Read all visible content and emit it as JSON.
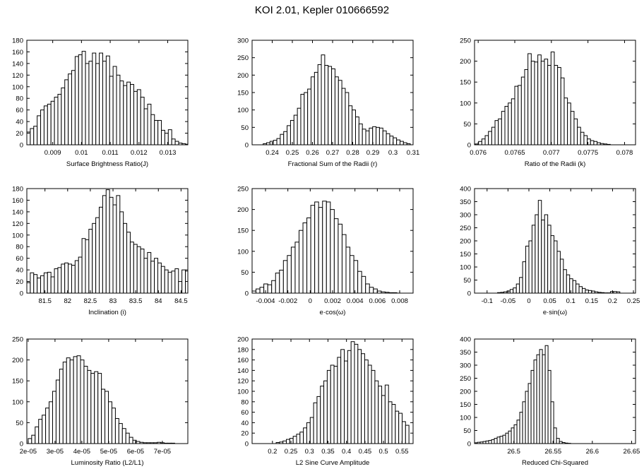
{
  "figure": {
    "title": "KOI 2.01, Kepler 010666592"
  },
  "chart_data": [
    {
      "type": "bar",
      "xlabel": "Surface Brightness Ratio(J)",
      "xlim": [
        0.0081,
        0.0137
      ],
      "ylim": [
        0,
        180
      ],
      "xticks": [
        0.009,
        0.01,
        0.011,
        0.012,
        0.013
      ],
      "xtick_labels": [
        "0.009",
        "0.01",
        "0.011",
        "0.012",
        "0.013"
      ],
      "yticks": [
        0,
        20,
        40,
        60,
        80,
        100,
        120,
        140,
        160,
        180
      ],
      "ytick_labels": [
        "0",
        "20",
        "40",
        "60",
        "80",
        "100",
        "120",
        "140",
        "160",
        "180"
      ],
      "bin_start": 0.0081,
      "bin_width": 0.00012,
      "values": [
        22,
        28,
        32,
        50,
        60,
        67,
        70,
        75,
        82,
        87,
        98,
        112,
        122,
        128,
        152,
        155,
        161,
        140,
        144,
        158,
        140,
        158,
        144,
        153,
        118,
        135,
        120,
        110,
        102,
        108,
        104,
        92,
        95,
        82,
        62,
        70,
        52,
        42,
        42,
        25,
        20,
        26,
        10,
        6,
        3,
        2,
        1
      ]
    },
    {
      "type": "bar",
      "xlabel": "Fractional Sum of the Radii (r)",
      "xlim": [
        0.23,
        0.31
      ],
      "ylim": [
        0,
        300
      ],
      "xticks": [
        0.24,
        0.25,
        0.26,
        0.27,
        0.28,
        0.29,
        0.3,
        0.31
      ],
      "xtick_labels": [
        "0.24",
        "0.25",
        "0.26",
        "0.27",
        "0.28",
        "0.29",
        "0.3",
        "0.31"
      ],
      "yticks": [
        0,
        50,
        100,
        150,
        200,
        250,
        300
      ],
      "ytick_labels": [
        "0",
        "50",
        "100",
        "150",
        "200",
        "250",
        "300"
      ],
      "bin_start": 0.2355,
      "bin_width": 0.0017,
      "values": [
        3,
        6,
        10,
        13,
        18,
        30,
        38,
        55,
        70,
        85,
        105,
        145,
        150,
        160,
        195,
        208,
        230,
        258,
        228,
        225,
        218,
        195,
        185,
        162,
        150,
        112,
        100,
        80,
        60,
        45,
        40,
        48,
        52,
        50,
        48,
        40,
        32,
        25,
        20,
        14,
        10,
        6,
        3
      ]
    },
    {
      "type": "bar",
      "xlabel": "Ratio of the Radii (k)",
      "xlim": [
        0.07595,
        0.07815
      ],
      "ylim": [
        0,
        250
      ],
      "xticks": [
        0.076,
        0.0765,
        0.077,
        0.0775,
        0.078
      ],
      "xtick_labels": [
        "0.076",
        "0.0765",
        "0.077",
        "0.0775",
        "0.078"
      ],
      "yticks": [
        0,
        50,
        100,
        150,
        200,
        250
      ],
      "ytick_labels": [
        "0",
        "50",
        "100",
        "150",
        "200",
        "250"
      ],
      "bin_start": 0.07596,
      "bin_width": 4.5e-05,
      "values": [
        2,
        8,
        14,
        22,
        32,
        42,
        58,
        62,
        80,
        92,
        100,
        110,
        140,
        142,
        162,
        180,
        218,
        200,
        198,
        215,
        200,
        205,
        190,
        222,
        190,
        185,
        160,
        112,
        100,
        80,
        62,
        42,
        30,
        22,
        14,
        10,
        8,
        5,
        3,
        2,
        1
      ]
    },
    {
      "type": "bar",
      "xlabel": "Inclination (i)",
      "xlim": [
        81.1,
        84.65
      ],
      "ylim": [
        0,
        180
      ],
      "xticks": [
        81.5,
        82,
        82.5,
        83,
        83.5,
        84,
        84.5
      ],
      "xtick_labels": [
        "81.5",
        "82",
        "82.5",
        "83",
        "83.5",
        "84",
        "84.5"
      ],
      "yticks": [
        0,
        20,
        40,
        60,
        80,
        100,
        120,
        140,
        160,
        180
      ],
      "ytick_labels": [
        "0",
        "20",
        "40",
        "60",
        "80",
        "100",
        "120",
        "140",
        "160",
        "180"
      ],
      "bin_start": 81.1,
      "bin_width": 0.076,
      "values": [
        18,
        35,
        32,
        26,
        30,
        35,
        36,
        28,
        42,
        44,
        50,
        52,
        50,
        48,
        56,
        62,
        94,
        92,
        110,
        120,
        130,
        148,
        168,
        178,
        165,
        152,
        168,
        140,
        120,
        105,
        88,
        84,
        80,
        76,
        60,
        70,
        55,
        60,
        52,
        46,
        40,
        36,
        38,
        42,
        20,
        40,
        38
      ]
    },
    {
      "type": "bar",
      "xlabel": "e·cos(ω)",
      "xlim": [
        -0.0052,
        0.0092
      ],
      "ylim": [
        0,
        250
      ],
      "xticks": [
        -0.004,
        -0.002,
        0,
        0.002,
        0.004,
        0.006,
        0.008
      ],
      "xtick_labels": [
        "-0.004",
        "-0.002",
        "0",
        "0.002",
        "0.004",
        "0.006",
        "0.008"
      ],
      "yticks": [
        0,
        50,
        100,
        150,
        200,
        250
      ],
      "ytick_labels": [
        "0",
        "50",
        "100",
        "150",
        "200",
        "250"
      ],
      "bin_start": -0.0052,
      "bin_width": 0.00035,
      "values": [
        5,
        10,
        14,
        22,
        20,
        30,
        48,
        55,
        78,
        90,
        110,
        122,
        150,
        168,
        180,
        210,
        218,
        205,
        220,
        218,
        200,
        178,
        165,
        140,
        110,
        90,
        78,
        52,
        40,
        22,
        14,
        10,
        5,
        3,
        2,
        1,
        1
      ]
    },
    {
      "type": "bar",
      "xlabel": "e·sin(ω)",
      "xlim": [
        -0.13,
        0.255
      ],
      "ylim": [
        0,
        400
      ],
      "xticks": [
        -0.1,
        -0.05,
        0,
        0.05,
        0.1,
        0.15,
        0.2,
        0.25
      ],
      "xtick_labels": [
        "-0.1",
        "-0.05",
        "0",
        "0.05",
        "0.1",
        "0.15",
        "0.2",
        "0.25"
      ],
      "yticks": [
        0,
        50,
        100,
        150,
        200,
        250,
        300,
        350,
        400
      ],
      "ytick_labels": [
        "0",
        "50",
        "100",
        "150",
        "200",
        "250",
        "300",
        "350",
        "400"
      ],
      "bin_start": -0.075,
      "bin_width": 0.0075,
      "values": [
        2,
        3,
        5,
        8,
        14,
        20,
        35,
        60,
        120,
        180,
        200,
        260,
        300,
        355,
        280,
        300,
        260,
        220,
        200,
        160,
        130,
        90,
        70,
        55,
        48,
        35,
        25,
        18,
        12,
        10,
        8,
        5,
        3,
        2,
        1,
        1,
        6,
        6,
        5
      ]
    },
    {
      "type": "bar",
      "xlabel": "Luminosity Ratio (L2/L1)",
      "xlim": [
        1.95e-05,
        7.95e-05
      ],
      "ylim": [
        0,
        250
      ],
      "xticks": [
        2e-05,
        3e-05,
        4e-05,
        5e-05,
        6e-05,
        7e-05
      ],
      "xtick_labels": [
        "2e-05",
        "3e-05",
        "4e-05",
        "5e-05",
        "6e-05",
        "7e-05"
      ],
      "yticks": [
        0,
        50,
        100,
        150,
        200,
        250
      ],
      "ytick_labels": [
        "0",
        "50",
        "100",
        "150",
        "200",
        "250"
      ],
      "bin_start": 2e-05,
      "bin_width": 1.3e-06,
      "values": [
        12,
        20,
        40,
        58,
        68,
        85,
        100,
        125,
        152,
        178,
        195,
        205,
        200,
        208,
        210,
        200,
        185,
        175,
        168,
        172,
        168,
        130,
        125,
        100,
        85,
        60,
        48,
        36,
        25,
        15,
        8,
        5,
        3,
        2,
        2,
        2,
        2,
        3,
        2,
        1,
        1,
        1
      ]
    },
    {
      "type": "bar",
      "xlabel": "L2 Sine Curve Amplitude",
      "xlim": [
        0.145,
        0.58
      ],
      "ylim": [
        0,
        200
      ],
      "xticks": [
        0.2,
        0.25,
        0.3,
        0.35,
        0.4,
        0.45,
        0.5,
        0.55
      ],
      "xtick_labels": [
        "0.2",
        "0.25",
        "0.3",
        "0.35",
        "0.4",
        "0.45",
        "0.5",
        "0.55"
      ],
      "yticks": [
        0,
        20,
        40,
        60,
        80,
        100,
        120,
        140,
        160,
        180,
        200
      ],
      "ytick_labels": [
        "0",
        "20",
        "40",
        "60",
        "80",
        "100",
        "120",
        "140",
        "160",
        "180",
        "200"
      ],
      "bin_start": 0.21,
      "bin_width": 0.0092,
      "values": [
        2,
        3,
        5,
        8,
        10,
        14,
        18,
        22,
        30,
        40,
        50,
        78,
        90,
        110,
        120,
        140,
        150,
        148,
        165,
        180,
        158,
        178,
        195,
        190,
        180,
        172,
        160,
        150,
        140,
        120,
        110,
        92,
        112,
        80,
        75,
        62,
        58,
        42,
        35
      ]
    },
    {
      "type": "bar",
      "xlabel": "Reduced Chi-Squared",
      "xlim": [
        26.45,
        26.655
      ],
      "ylim": [
        0,
        400
      ],
      "xticks": [
        26.5,
        26.55,
        26.6,
        26.65
      ],
      "xtick_labels": [
        "26.5",
        "26.55",
        "26.6",
        "26.65"
      ],
      "yticks": [
        0,
        50,
        100,
        150,
        200,
        250,
        300,
        350,
        400
      ],
      "ytick_labels": [
        "0",
        "50",
        "100",
        "150",
        "200",
        "250",
        "300",
        "350",
        "400"
      ],
      "bin_start": 26.45,
      "bin_width": 0.0036,
      "values": [
        3,
        5,
        6,
        8,
        10,
        12,
        15,
        20,
        25,
        28,
        32,
        40,
        48,
        60,
        72,
        90,
        120,
        160,
        200,
        230,
        280,
        320,
        340,
        360,
        340,
        375,
        280,
        160,
        60,
        20,
        8,
        4,
        2,
        1
      ]
    }
  ]
}
